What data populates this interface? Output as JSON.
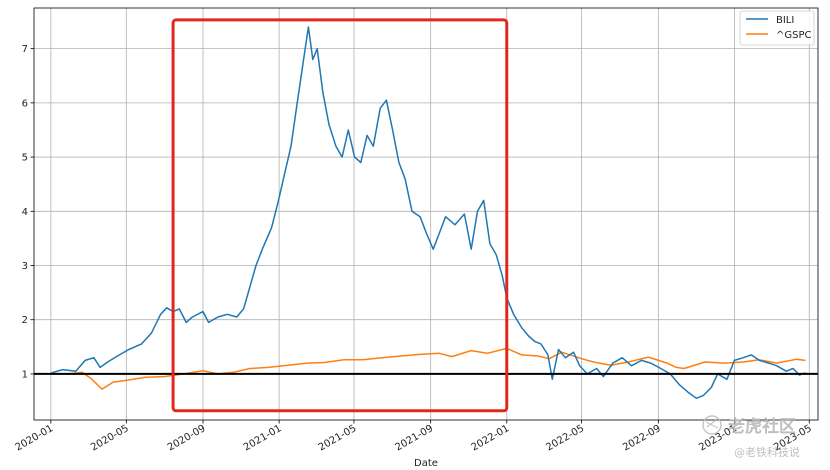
{
  "chart_data": {
    "type": "line",
    "title": "",
    "xlabel": "Date",
    "ylabel": "",
    "xlim": [
      "2019-12-05",
      "2023-05-15"
    ],
    "ylim": [
      0.15,
      7.75
    ],
    "x_ticks": [
      "2020-01",
      "2020-05",
      "2020-09",
      "2021-01",
      "2021-05",
      "2021-09",
      "2022-01",
      "2022-05",
      "2022-09",
      "2023-01",
      "2023-05"
    ],
    "y_ticks": [
      1,
      2,
      3,
      4,
      5,
      6,
      7
    ],
    "grid": true,
    "legend_position": "top-right",
    "reference_line": {
      "y": 1,
      "color": "#000000"
    },
    "highlight_box": {
      "x": [
        "2020-07-15",
        "2022-01-01"
      ],
      "y": [
        0.32,
        7.53
      ],
      "color": "#e0281e"
    },
    "series": [
      {
        "name": "BILI",
        "color": "#1f77b4",
        "points": [
          [
            "2020-01-02",
            1.02
          ],
          [
            "2020-01-20",
            1.08
          ],
          [
            "2020-02-10",
            1.05
          ],
          [
            "2020-02-25",
            1.25
          ],
          [
            "2020-03-10",
            1.3
          ],
          [
            "2020-03-20",
            1.12
          ],
          [
            "2020-04-01",
            1.22
          ],
          [
            "2020-04-20",
            1.35
          ],
          [
            "2020-05-05",
            1.45
          ],
          [
            "2020-05-25",
            1.55
          ],
          [
            "2020-06-10",
            1.75
          ],
          [
            "2020-06-25",
            2.1
          ],
          [
            "2020-07-05",
            2.22
          ],
          [
            "2020-07-15",
            2.15
          ],
          [
            "2020-07-25",
            2.2
          ],
          [
            "2020-08-05",
            1.95
          ],
          [
            "2020-08-15",
            2.05
          ],
          [
            "2020-09-01",
            2.15
          ],
          [
            "2020-09-10",
            1.95
          ],
          [
            "2020-09-25",
            2.05
          ],
          [
            "2020-10-10",
            2.1
          ],
          [
            "2020-10-25",
            2.05
          ],
          [
            "2020-11-05",
            2.2
          ],
          [
            "2020-11-15",
            2.6
          ],
          [
            "2020-11-25",
            3.0
          ],
          [
            "2020-12-05",
            3.3
          ],
          [
            "2020-12-20",
            3.7
          ],
          [
            "2020-12-31",
            4.2
          ],
          [
            "2021-01-10",
            4.7
          ],
          [
            "2021-01-20",
            5.2
          ],
          [
            "2021-01-30",
            6.0
          ],
          [
            "2021-02-08",
            6.7
          ],
          [
            "2021-02-17",
            7.4
          ],
          [
            "2021-02-24",
            6.8
          ],
          [
            "2021-03-03",
            7.0
          ],
          [
            "2021-03-12",
            6.2
          ],
          [
            "2021-03-22",
            5.6
          ],
          [
            "2021-04-02",
            5.2
          ],
          [
            "2021-04-12",
            5.0
          ],
          [
            "2021-04-22",
            5.5
          ],
          [
            "2021-05-02",
            5.0
          ],
          [
            "2021-05-12",
            4.9
          ],
          [
            "2021-05-22",
            5.4
          ],
          [
            "2021-06-01",
            5.2
          ],
          [
            "2021-06-12",
            5.9
          ],
          [
            "2021-06-22",
            6.05
          ],
          [
            "2021-07-02",
            5.5
          ],
          [
            "2021-07-12",
            4.9
          ],
          [
            "2021-07-22",
            4.6
          ],
          [
            "2021-08-02",
            4.0
          ],
          [
            "2021-08-15",
            3.9
          ],
          [
            "2021-08-25",
            3.6
          ],
          [
            "2021-09-05",
            3.3
          ],
          [
            "2021-09-15",
            3.6
          ],
          [
            "2021-09-25",
            3.9
          ],
          [
            "2021-10-10",
            3.75
          ],
          [
            "2021-10-25",
            3.95
          ],
          [
            "2021-11-05",
            3.3
          ],
          [
            "2021-11-15",
            4.0
          ],
          [
            "2021-11-25",
            4.2
          ],
          [
            "2021-12-05",
            3.4
          ],
          [
            "2021-12-15",
            3.2
          ],
          [
            "2021-12-25",
            2.8
          ],
          [
            "2022-01-01",
            2.4
          ],
          [
            "2022-01-12",
            2.1
          ],
          [
            "2022-01-25",
            1.85
          ],
          [
            "2022-02-05",
            1.7
          ],
          [
            "2022-02-15",
            1.6
          ],
          [
            "2022-02-25",
            1.55
          ],
          [
            "2022-03-08",
            1.35
          ],
          [
            "2022-03-15",
            0.9
          ],
          [
            "2022-03-25",
            1.45
          ],
          [
            "2022-04-05",
            1.3
          ],
          [
            "2022-04-18",
            1.4
          ],
          [
            "2022-04-28",
            1.15
          ],
          [
            "2022-05-10",
            1.0
          ],
          [
            "2022-05-25",
            1.1
          ],
          [
            "2022-06-05",
            0.95
          ],
          [
            "2022-06-20",
            1.2
          ],
          [
            "2022-07-05",
            1.3
          ],
          [
            "2022-07-20",
            1.15
          ],
          [
            "2022-08-05",
            1.25
          ],
          [
            "2022-08-20",
            1.2
          ],
          [
            "2022-09-05",
            1.1
          ],
          [
            "2022-09-20",
            1.0
          ],
          [
            "2022-10-05",
            0.8
          ],
          [
            "2022-10-20",
            0.65
          ],
          [
            "2022-11-01",
            0.55
          ],
          [
            "2022-11-12",
            0.6
          ],
          [
            "2022-11-25",
            0.75
          ],
          [
            "2022-12-05",
            1.0
          ],
          [
            "2022-12-20",
            0.9
          ],
          [
            "2023-01-01",
            1.25
          ],
          [
            "2023-01-15",
            1.3
          ],
          [
            "2023-01-28",
            1.35
          ],
          [
            "2023-02-10",
            1.25
          ],
          [
            "2023-02-25",
            1.2
          ],
          [
            "2023-03-10",
            1.15
          ],
          [
            "2023-03-25",
            1.05
          ],
          [
            "2023-04-05",
            1.1
          ],
          [
            "2023-04-15",
            0.98
          ],
          [
            "2023-04-25",
            1.02
          ]
        ]
      },
      {
        "name": "^GSPC",
        "color": "#ff7f0e",
        "points": [
          [
            "2020-01-02",
            1.0
          ],
          [
            "2020-02-01",
            1.0
          ],
          [
            "2020-02-20",
            1.03
          ],
          [
            "2020-03-05",
            0.92
          ],
          [
            "2020-03-23",
            0.72
          ],
          [
            "2020-04-10",
            0.85
          ],
          [
            "2020-05-01",
            0.88
          ],
          [
            "2020-06-01",
            0.94
          ],
          [
            "2020-07-01",
            0.95
          ],
          [
            "2020-08-01",
            1.0
          ],
          [
            "2020-09-01",
            1.06
          ],
          [
            "2020-09-25",
            1.0
          ],
          [
            "2020-10-20",
            1.03
          ],
          [
            "2020-11-15",
            1.1
          ],
          [
            "2020-12-15",
            1.12
          ],
          [
            "2021-01-15",
            1.16
          ],
          [
            "2021-02-15",
            1.2
          ],
          [
            "2021-03-15",
            1.21
          ],
          [
            "2021-04-15",
            1.26
          ],
          [
            "2021-05-15",
            1.26
          ],
          [
            "2021-06-15",
            1.3
          ],
          [
            "2021-07-15",
            1.33
          ],
          [
            "2021-08-15",
            1.36
          ],
          [
            "2021-09-15",
            1.38
          ],
          [
            "2021-10-05",
            1.32
          ],
          [
            "2021-11-05",
            1.43
          ],
          [
            "2021-12-01",
            1.38
          ],
          [
            "2022-01-01",
            1.47
          ],
          [
            "2022-01-25",
            1.35
          ],
          [
            "2022-02-20",
            1.33
          ],
          [
            "2022-03-10",
            1.28
          ],
          [
            "2022-03-30",
            1.4
          ],
          [
            "2022-05-01",
            1.28
          ],
          [
            "2022-05-20",
            1.22
          ],
          [
            "2022-06-17",
            1.16
          ],
          [
            "2022-07-15",
            1.22
          ],
          [
            "2022-08-16",
            1.31
          ],
          [
            "2022-09-15",
            1.2
          ],
          [
            "2022-09-30",
            1.12
          ],
          [
            "2022-10-12",
            1.1
          ],
          [
            "2022-11-15",
            1.22
          ],
          [
            "2022-12-15",
            1.2
          ],
          [
            "2023-01-15",
            1.22
          ],
          [
            "2023-02-10",
            1.26
          ],
          [
            "2023-03-10",
            1.2
          ],
          [
            "2023-04-10",
            1.27
          ],
          [
            "2023-04-25",
            1.25
          ]
        ]
      }
    ]
  },
  "watermark": {
    "brand": "老虎社区",
    "handle": "@老铁科技说"
  }
}
